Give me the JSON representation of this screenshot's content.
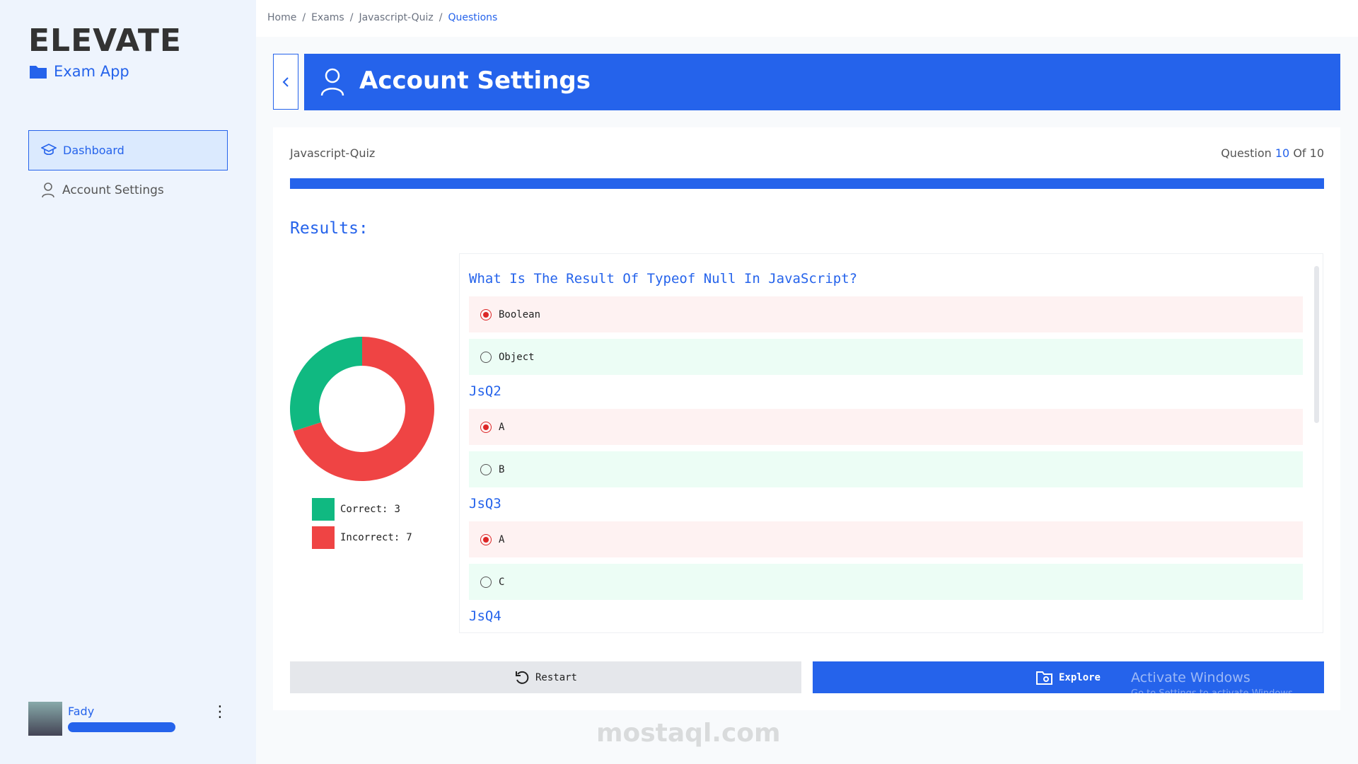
{
  "breadcrumb": [
    "Home",
    "Exams",
    "Javascript-Quiz",
    "Questions"
  ],
  "sidebar": {
    "logo": "ELEVATE",
    "app": "Exam App",
    "menu": [
      "Dashboard",
      "Account Settings"
    ],
    "user": "Fady"
  },
  "header": {
    "title": "Account Settings"
  },
  "quiz": {
    "name": "Javascript-Quiz",
    "progress_label": "Question",
    "current": 10,
    "of_label": "Of",
    "total": 10
  },
  "results": {
    "title": "Results:",
    "segments": [
      {
        "label": "Correct:",
        "value": 3,
        "color": "#10b981"
      },
      {
        "label": "Incorrect:",
        "value": 7,
        "color": "#ef4444"
      }
    ]
  },
  "questions": [
    {
      "title": "What Is The Result Of Typeof Null In JavaScript?",
      "options": [
        {
          "text": "Boolean",
          "state": "wrong"
        },
        {
          "text": "Object",
          "state": "correct"
        }
      ]
    },
    {
      "title": "JsQ2",
      "options": [
        {
          "text": "A",
          "state": "wrong"
        },
        {
          "text": "B",
          "state": "correct"
        }
      ]
    },
    {
      "title": "JsQ3",
      "options": [
        {
          "text": "A",
          "state": "wrong"
        },
        {
          "text": "C",
          "state": "correct"
        }
      ]
    },
    {
      "title": "JsQ4",
      "options": []
    }
  ],
  "buttons": {
    "restart": "Restart",
    "explore": "Explore"
  },
  "watermark": {
    "activate": "Activate Windows",
    "activate_hint": "Go to Settings to activate Windows.",
    "site": "mostaql.com"
  }
}
